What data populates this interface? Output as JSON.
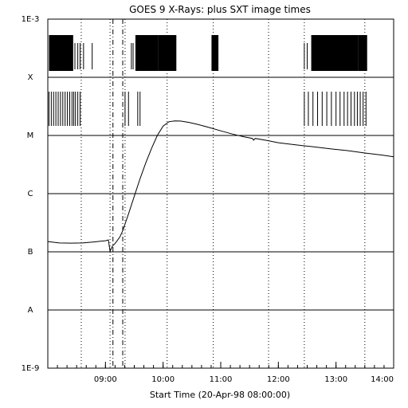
{
  "chart_data": {
    "type": "line",
    "title": "GOES 9 X-Rays:  plus SXT image times",
    "xlabel": "Start Time (20-Apr-98 08:00:00)",
    "ylabel": "",
    "y_scale": "log",
    "ylim": [
      1e-09,
      0.001
    ],
    "y_class_labels": [
      {
        "label": "1E-9",
        "value": 1e-09
      },
      {
        "label": "A",
        "value": 1e-08
      },
      {
        "label": "B",
        "value": 1e-07
      },
      {
        "label": "C",
        "value": 1e-06
      },
      {
        "label": "M",
        "value": 1e-05
      },
      {
        "label": "X",
        "value": 0.0001
      },
      {
        "label": "1E-3",
        "value": 0.001
      }
    ],
    "x_time_range_hours": [
      8.0,
      14.0
    ],
    "x_ticks": [
      {
        "label": "09:00",
        "hour": 9
      },
      {
        "label": "10:00",
        "hour": 10
      },
      {
        "label": "11:00",
        "hour": 11
      },
      {
        "label": "12:00",
        "hour": 12
      },
      {
        "label": "13:00",
        "hour": 13
      },
      {
        "label": "14:00",
        "hour": 14
      }
    ],
    "grid": "horizontal lines at each flare class",
    "dotted_time_markers_hours": [
      8.58,
      9.08,
      9.34,
      10.07,
      10.87,
      11.83,
      12.45,
      13.5
    ],
    "dashdot_time_markers_hours": [
      9.13,
      9.3
    ],
    "series": [
      {
        "x_hours": [
          8.0,
          8.2,
          8.4,
          8.6,
          8.8,
          9.0,
          9.05,
          9.08,
          9.12,
          9.17,
          9.25,
          9.3,
          9.4,
          9.5,
          9.6,
          9.7,
          9.8,
          9.9,
          10.0,
          10.1,
          10.2,
          10.3,
          10.45,
          10.6,
          10.8,
          11.0,
          11.2,
          11.4,
          11.55,
          11.57,
          11.6,
          11.8,
          12.0,
          12.3,
          12.6,
          12.9,
          13.2,
          13.5,
          13.8,
          14.0
        ],
        "y_values": [
          1.5e-07,
          1.42e-07,
          1.41e-07,
          1.42e-07,
          1.48e-07,
          1.55e-07,
          1.6e-07,
          1.02e-07,
          1.25e-07,
          1.4e-07,
          1.8e-07,
          2.3e-07,
          4.5e-07,
          9e-07,
          1.8e-06,
          3.4e-06,
          6e-06,
          1e-05,
          1.45e-05,
          1.72e-05,
          1.78e-05,
          1.77e-05,
          1.68e-05,
          1.55e-05,
          1.37e-05,
          1.2e-05,
          1.06e-05,
          9.5e-06,
          8.9e-06,
          8.3e-06,
          8.9e-06,
          8.2e-06,
          7.5e-06,
          6.9e-06,
          6.4e-06,
          5.9e-06,
          5.5e-06,
          5e-06,
          4.6e-06,
          4.3e-06
        ]
      }
    ],
    "image_times_hours": {
      "upper_dense_blocks": [
        [
          8.02,
          8.44
        ],
        [
          9.52,
          9.92
        ],
        [
          9.92,
          10.23
        ],
        [
          10.84,
          10.96
        ],
        [
          12.57,
          13.38
        ],
        [
          13.38,
          13.54
        ]
      ],
      "upper_sparse": [
        8.47,
        8.52,
        8.56,
        8.62,
        8.77,
        9.45,
        9.48,
        12.45,
        12.5
      ],
      "lower_ticks": [
        8.02,
        8.06,
        8.1,
        8.14,
        8.18,
        8.22,
        8.26,
        8.3,
        8.34,
        8.38,
        8.42,
        8.45,
        8.48,
        8.52,
        8.56,
        9.34,
        9.4,
        9.56,
        9.6,
        12.45,
        12.52,
        12.6,
        12.68,
        12.76,
        12.84,
        12.92,
        13.0,
        13.07,
        13.14,
        13.2,
        13.26,
        13.32,
        13.37,
        13.42,
        13.47,
        13.52
      ]
    }
  }
}
